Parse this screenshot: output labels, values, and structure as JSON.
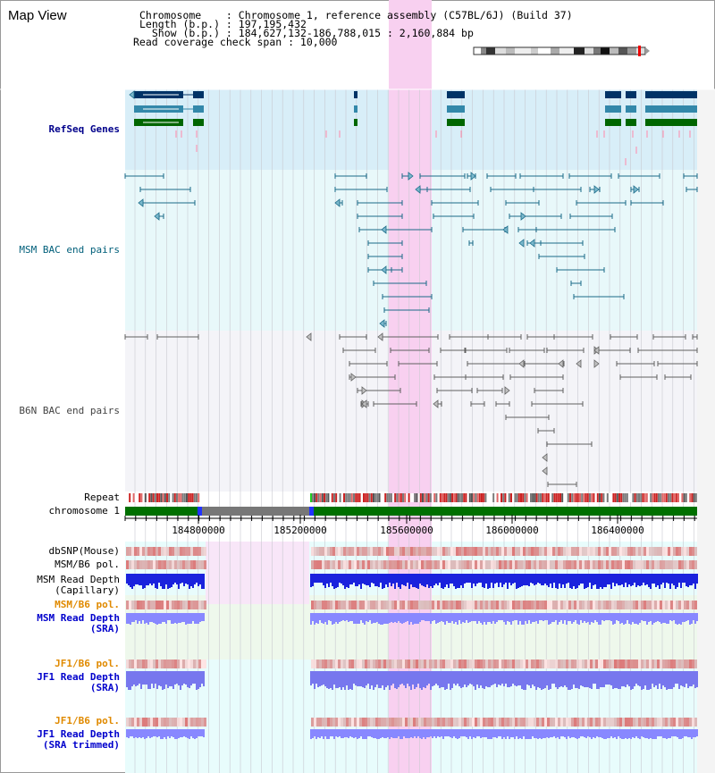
{
  "header": {
    "title": "Map View",
    "chromosome_line": "Chromosome    : Chromosome 1, reference assembly (C57BL/6J) (Build 37)",
    "length_line": "Length (b.p.) : 197,195,432",
    "show_line": "  Show (b.p.) : 184,627,132-186,788,015 : 2,160,884 bp",
    "coverage_line": "Read coverage check span : 10,000"
  },
  "tracks": {
    "refseq_genes": "RefSeq Genes",
    "msm_bac": "MSM BAC end pairs",
    "b6n_bac": "B6N BAC end pairs",
    "repeat": "Repeat",
    "chromosome": "chromosome 1",
    "dbsnp": "dbSNP(Mouse)",
    "msm_b6_pol": "MSM/B6 pol.",
    "msm_read_depth_cap_1": "MSM Read Depth",
    "msm_read_depth_cap_2": "(Capillary)",
    "msm_b6_pol_sra": "MSM/B6 pol.",
    "msm_read_depth_sra_1": "MSM Read Depth",
    "msm_read_depth_sra_2": "(SRA)",
    "jf1_b6_pol": "JF1/B6 pol.",
    "jf1_read_depth_1": "JF1 Read Depth",
    "jf1_read_depth_2": "(SRA)",
    "jf1_b6_pol_trim": "JF1/B6 pol.",
    "jf1_read_depth_trim_1": "JF1 Read Depth",
    "jf1_read_depth_trim_2": "(SRA trimmed)"
  },
  "axis": {
    "ticks": [
      "184800000",
      "185200000",
      "185600000",
      "186000000",
      "186400000"
    ]
  },
  "colors": {
    "refseq_label": "#00008b",
    "msm_bac_label": "#005f7a",
    "b6n_bac_label": "#444444",
    "orange_label": "#e08a00",
    "blue_label": "#0000cc",
    "highlight": "#f8d0f0",
    "chromosome_bar": "#007000"
  }
}
